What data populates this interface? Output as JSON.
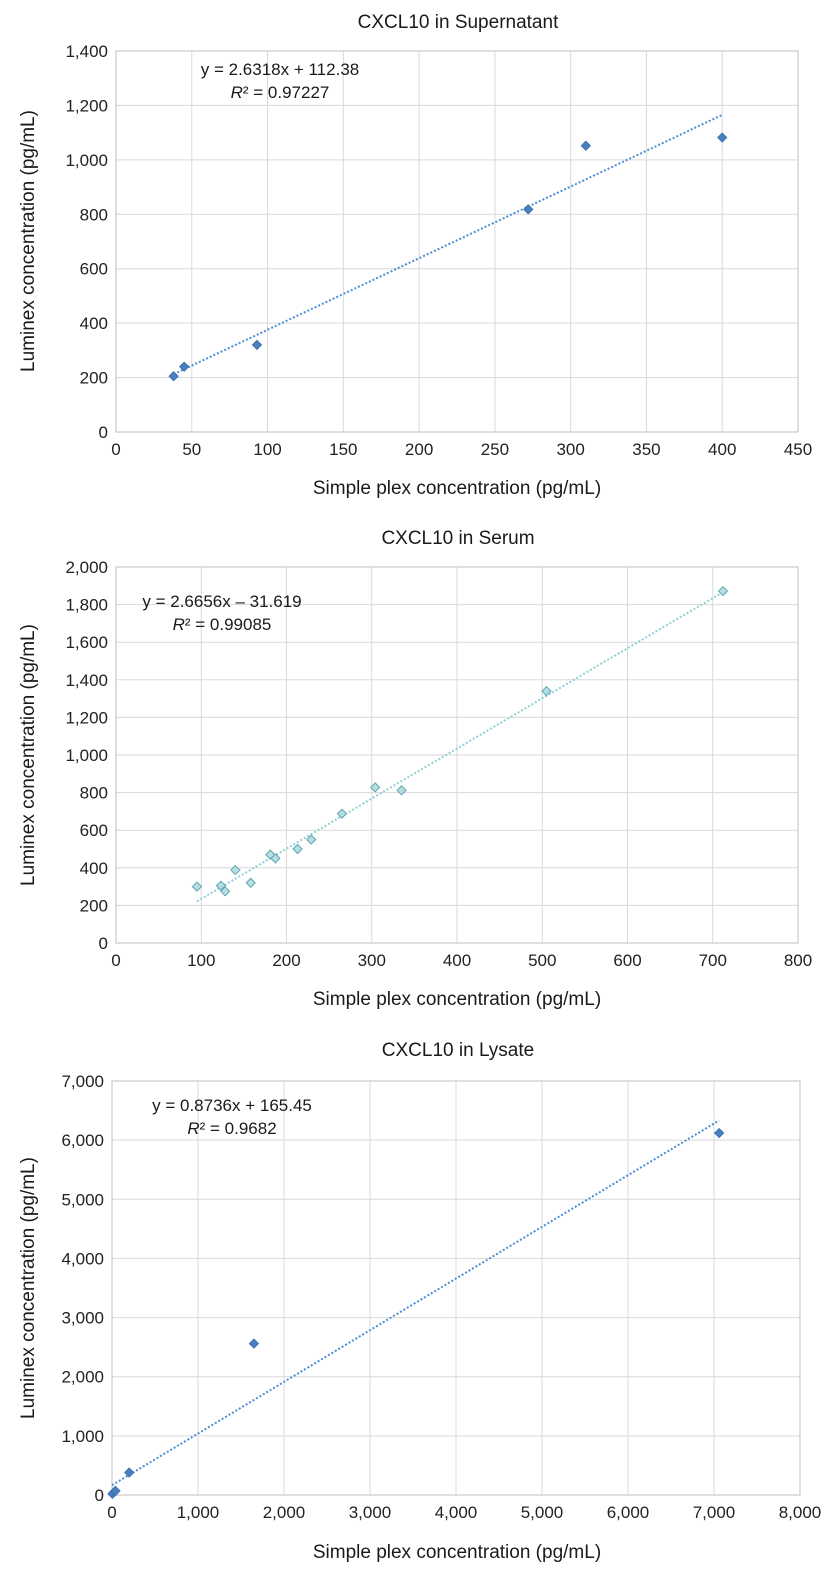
{
  "chart_data": [
    {
      "type": "scatter",
      "title": "CXCL10 in Supernatant",
      "xlabel": "Simple plex concentration (pg/mL)",
      "ylabel": "Luminex concentration (pg/mL)",
      "xlim": [
        0,
        450
      ],
      "ylim": [
        0,
        1400
      ],
      "x_ticks": [
        0,
        50,
        100,
        150,
        200,
        250,
        300,
        350,
        400,
        450
      ],
      "y_ticks": [
        0,
        200,
        400,
        600,
        800,
        1000,
        1200,
        1400
      ],
      "x_tick_labels": [
        "0",
        "50",
        "100",
        "150",
        "200",
        "250",
        "300",
        "350",
        "400",
        "450"
      ],
      "y_tick_labels": [
        "0",
        "200",
        "400",
        "600",
        "800",
        "1,000",
        "1,200",
        "1,400"
      ],
      "grid": true,
      "marker_color": "#3f72af",
      "marker_fill": "#4a7fbf",
      "trend_color": "#4a8fd4",
      "trendline": {
        "slope": 2.6318,
        "intercept": 112.38,
        "x_range": [
          38,
          400
        ]
      },
      "equation": "y = 2.6318x + 112.38",
      "r2_label": "R",
      "r2_rest": "² = 0.97227",
      "points": [
        {
          "x": 38,
          "y": 205
        },
        {
          "x": 45,
          "y": 240
        },
        {
          "x": 93,
          "y": 320
        },
        {
          "x": 272,
          "y": 818
        },
        {
          "x": 310,
          "y": 1052
        },
        {
          "x": 400,
          "y": 1082
        }
      ]
    },
    {
      "type": "scatter",
      "title": "CXCL10 in Serum",
      "xlabel": "Simple plex concentration (pg/mL)",
      "ylabel": "Luminex concentration (pg/mL)",
      "xlim": [
        0,
        800
      ],
      "ylim": [
        0,
        2000
      ],
      "x_ticks": [
        0,
        100,
        200,
        300,
        400,
        500,
        600,
        700,
        800
      ],
      "y_ticks": [
        0,
        200,
        400,
        600,
        800,
        1000,
        1200,
        1400,
        1600,
        1800,
        2000
      ],
      "x_tick_labels": [
        "0",
        "100",
        "200",
        "300",
        "400",
        "500",
        "600",
        "700",
        "800"
      ],
      "y_tick_labels": [
        "0",
        "200",
        "400",
        "600",
        "800",
        "1,000",
        "1,200",
        "1,400",
        "1,600",
        "1,800",
        "2,000"
      ],
      "grid": true,
      "marker_color": "#5fa6b0",
      "marker_fill": "#b5dde2",
      "trend_color": "#8fcfd6",
      "trendline": {
        "slope": 2.6656,
        "intercept": -31.619,
        "x_range": [
          95,
          712
        ]
      },
      "equation": "y = 2.6656x – 31.619",
      "r2_label": "R",
      "r2_rest": "² = 0.99085",
      "points": [
        {
          "x": 95,
          "y": 300
        },
        {
          "x": 123,
          "y": 305
        },
        {
          "x": 128,
          "y": 275
        },
        {
          "x": 140,
          "y": 388
        },
        {
          "x": 158,
          "y": 320
        },
        {
          "x": 181,
          "y": 470
        },
        {
          "x": 187,
          "y": 450
        },
        {
          "x": 213,
          "y": 500
        },
        {
          "x": 229,
          "y": 550
        },
        {
          "x": 265,
          "y": 688
        },
        {
          "x": 304,
          "y": 828
        },
        {
          "x": 335,
          "y": 812
        },
        {
          "x": 505,
          "y": 1340
        },
        {
          "x": 712,
          "y": 1872
        }
      ]
    },
    {
      "type": "scatter",
      "title": "CXCL10 in Lysate",
      "xlabel": "Simple plex concentration (pg/mL)",
      "ylabel": "Luminex concentration (pg/mL)",
      "xlim": [
        0,
        8000
      ],
      "ylim": [
        0,
        7000
      ],
      "x_ticks": [
        0,
        1000,
        2000,
        3000,
        4000,
        5000,
        6000,
        7000,
        8000
      ],
      "y_ticks": [
        0,
        1000,
        2000,
        3000,
        4000,
        5000,
        6000,
        7000
      ],
      "x_tick_labels": [
        "0",
        "1,000",
        "2,000",
        "3,000",
        "4,000",
        "5,000",
        "6,000",
        "7,000",
        "8,000"
      ],
      "y_tick_labels": [
        "0",
        "1,000",
        "2,000",
        "3,000",
        "4,000",
        "5,000",
        "6,000",
        "7,000"
      ],
      "grid": true,
      "marker_color": "#3f72af",
      "marker_fill": "#4a7fbf",
      "trend_color": "#4a8fd4",
      "trendline": {
        "slope": 0.8736,
        "intercept": 165.45,
        "x_range": [
          0,
          7060
        ]
      },
      "equation": "y = 0.8736x + 165.45",
      "r2_label": "R",
      "r2_rest": "² = 0.9682",
      "points": [
        {
          "x": 5,
          "y": 20
        },
        {
          "x": 25,
          "y": 50
        },
        {
          "x": 40,
          "y": 70
        },
        {
          "x": 200,
          "y": 380
        },
        {
          "x": 1650,
          "y": 2560
        },
        {
          "x": 7060,
          "y": 6120
        }
      ]
    }
  ]
}
